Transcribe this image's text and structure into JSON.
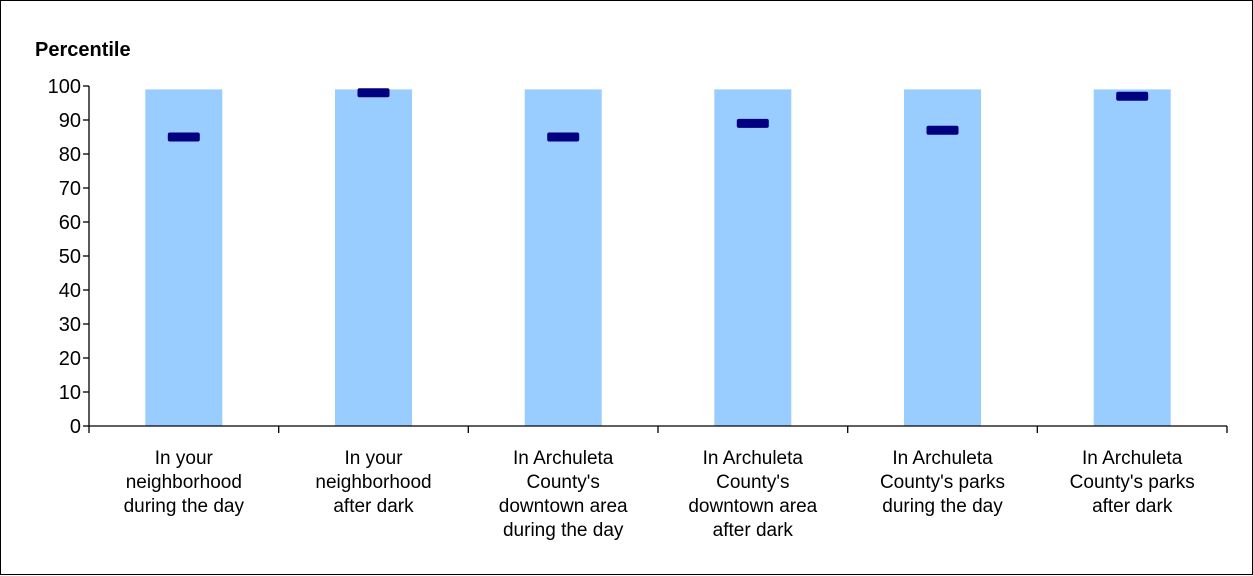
{
  "chart_data": {
    "type": "bar",
    "ylabel": "Percentile",
    "xlabel": "",
    "ylim": [
      0,
      100
    ],
    "yticks": [
      0,
      10,
      20,
      30,
      40,
      50,
      60,
      70,
      80,
      90,
      100
    ],
    "categories": [
      [
        "In your",
        "neighborhood",
        "during the day"
      ],
      [
        "In your",
        "neighborhood",
        "after dark"
      ],
      [
        "In Archuleta",
        "County's",
        "downtown area",
        "during the day"
      ],
      [
        "In Archuleta",
        "County's",
        "downtown area",
        "after dark"
      ],
      [
        "In Archuleta",
        "County's parks",
        "during the day"
      ],
      [
        "In Archuleta",
        "County's parks",
        "after dark"
      ]
    ],
    "series": [
      {
        "values": [
          99,
          99,
          99,
          99,
          99,
          99
        ]
      },
      {
        "values": [
          85,
          98,
          85,
          89,
          87,
          97
        ]
      }
    ],
    "colors": {
      "range": "#99CCFF",
      "marker": "#000080",
      "axis": "#000000"
    },
    "grid": false,
    "legend": "none"
  }
}
